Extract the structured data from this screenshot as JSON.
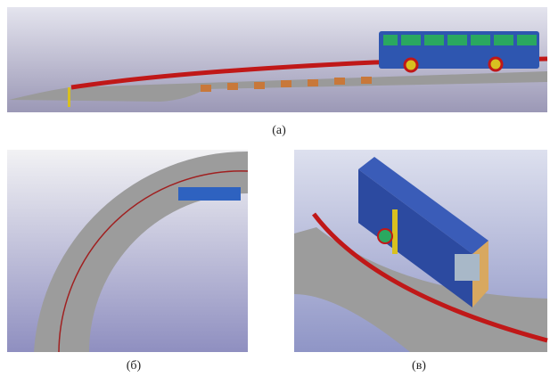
{
  "panels": [
    {
      "caption": "(а)"
    },
    {
      "caption": "(б)"
    },
    {
      "caption": "(в)"
    }
  ]
}
